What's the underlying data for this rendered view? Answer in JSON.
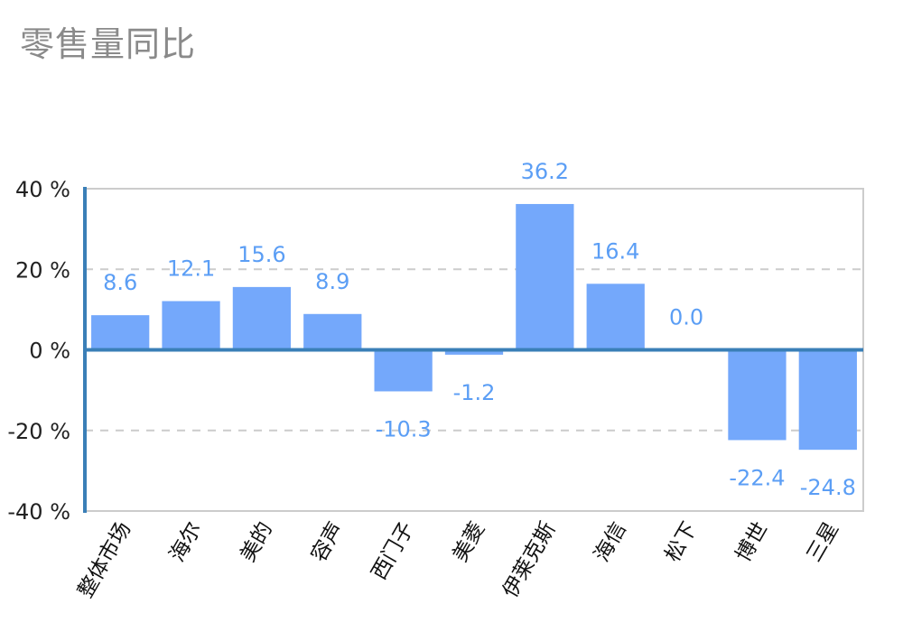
{
  "title": "零售量同比",
  "colors": {
    "bar": "#74a8fb",
    "axis": "#3a7fb7",
    "grid": "#cccccc",
    "label": "#5b9ef5"
  },
  "chart_data": {
    "type": "bar",
    "title": "零售量同比",
    "xlabel": "",
    "ylabel": "",
    "categories": [
      "整体市场",
      "海尔",
      "美的",
      "容声",
      "西门子",
      "美菱",
      "伊莱克斯",
      "海信",
      "松下",
      "博世",
      "三星"
    ],
    "values": [
      8.6,
      12.1,
      15.6,
      8.9,
      -10.3,
      -1.2,
      36.2,
      16.4,
      0.0,
      -22.4,
      -24.8
    ],
    "value_labels": [
      "8.6",
      "12.1",
      "15.6",
      "8.9",
      "-10.3",
      "-1.2",
      "36.2",
      "16.4",
      "0.0",
      "-22.4",
      "-24.8"
    ],
    "ylim": [
      -40,
      40
    ],
    "yticks": [
      40,
      20,
      0,
      -20,
      -40
    ],
    "ytick_labels": [
      "40 %",
      "20 %",
      "0 %",
      "-20 %",
      "-40 %"
    ],
    "grid": true,
    "legend": "none"
  }
}
